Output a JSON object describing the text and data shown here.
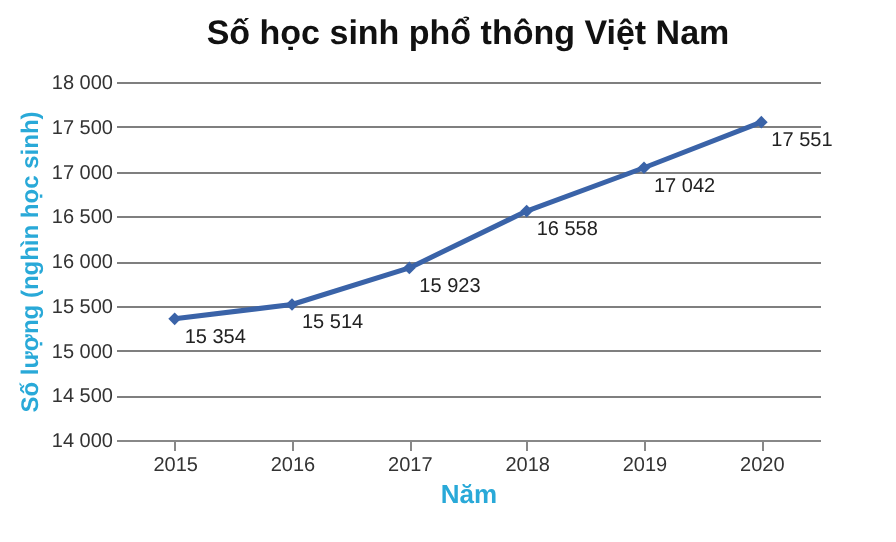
{
  "chart_data": {
    "type": "line",
    "title": "Số học sinh phổ thông Việt Nam",
    "xlabel": "Năm",
    "ylabel": "Số lượng (nghìn học sinh)",
    "categories": [
      "2015",
      "2016",
      "2017",
      "2018",
      "2019",
      "2020"
    ],
    "series": [
      {
        "color": "#3a63a8",
        "values": [
          15354,
          15514,
          15923,
          16558,
          17042,
          17551
        ],
        "value_labels": [
          "15 354",
          "15 514",
          "15 923",
          "16 558",
          "17 042",
          "17 551"
        ]
      }
    ],
    "ylim": [
      14000,
      18000
    ],
    "yticks": [
      {
        "value": 14000,
        "label": "14 000"
      },
      {
        "value": 14500,
        "label": "14 500"
      },
      {
        "value": 15000,
        "label": "15 000"
      },
      {
        "value": 15500,
        "label": "15 500"
      },
      {
        "value": 16000,
        "label": "16 000"
      },
      {
        "value": 16500,
        "label": "16 500"
      },
      {
        "value": 17000,
        "label": "17 000"
      },
      {
        "value": 17500,
        "label": "17 500"
      },
      {
        "value": 18000,
        "label": "18 000"
      }
    ],
    "grid": "y",
    "marker": "diamond",
    "line_style": "solid"
  }
}
